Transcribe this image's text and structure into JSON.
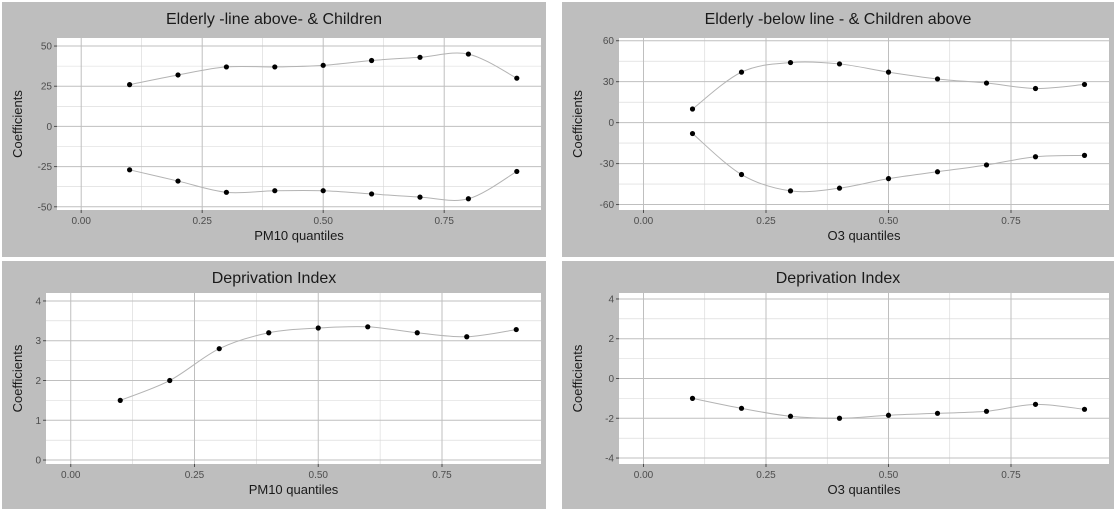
{
  "chart_data": [
    {
      "type": "line",
      "title": "Elderly -line above- & Children",
      "xlabel": "PM10 quantiles",
      "ylabel": "Coefficients",
      "xlim": [
        -0.05,
        0.95
      ],
      "ylim": [
        -52,
        55
      ],
      "xticks": [
        0.0,
        0.25,
        0.5,
        0.75
      ],
      "xtick_labels": [
        "0.00",
        "0.25",
        "0.50",
        "0.75"
      ],
      "yticks": [
        -50,
        -25,
        0,
        25,
        50
      ],
      "ytick_labels": [
        "-50",
        "-25",
        "0",
        "25",
        "50"
      ],
      "grid": true,
      "series": [
        {
          "x": [
            0.1,
            0.2,
            0.3,
            0.4,
            0.5,
            0.6,
            0.7,
            0.8,
            0.9
          ],
          "values": [
            26,
            32,
            37,
            37,
            38,
            41,
            43,
            45,
            30
          ]
        },
        {
          "x": [
            0.1,
            0.2,
            0.3,
            0.4,
            0.5,
            0.6,
            0.7,
            0.8,
            0.9
          ],
          "values": [
            -27,
            -34,
            -41,
            -40,
            -40,
            -42,
            -44,
            -45,
            -28
          ]
        }
      ]
    },
    {
      "type": "line",
      "title": "Elderly -below line - & Children above",
      "xlabel": "O3 quantiles",
      "ylabel": "Coefficients",
      "xlim": [
        -0.05,
        0.95
      ],
      "ylim": [
        -64,
        62
      ],
      "xticks": [
        0.0,
        0.25,
        0.5,
        0.75
      ],
      "xtick_labels": [
        "0.00",
        "0.25",
        "0.50",
        "0.75"
      ],
      "yticks": [
        -60,
        -30,
        0,
        30,
        60
      ],
      "ytick_labels": [
        "-60",
        "-30",
        "0",
        "30",
        "60"
      ],
      "grid": true,
      "series": [
        {
          "x": [
            0.1,
            0.2,
            0.3,
            0.4,
            0.5,
            0.6,
            0.7,
            0.8,
            0.9
          ],
          "values": [
            10,
            37,
            44,
            43,
            37,
            32,
            29,
            25,
            28
          ]
        },
        {
          "x": [
            0.1,
            0.2,
            0.3,
            0.4,
            0.5,
            0.6,
            0.7,
            0.8,
            0.9
          ],
          "values": [
            -8,
            -38,
            -50,
            -48,
            -41,
            -36,
            -31,
            -25,
            -24
          ]
        }
      ]
    },
    {
      "type": "line",
      "title": "Deprivation Index",
      "xlabel": "PM10 quantiles",
      "ylabel": "Coefficients",
      "xlim": [
        -0.05,
        0.95
      ],
      "ylim": [
        -0.1,
        4.2
      ],
      "xticks": [
        0.0,
        0.25,
        0.5,
        0.75
      ],
      "xtick_labels": [
        "0.00",
        "0.25",
        "0.50",
        "0.75"
      ],
      "yticks": [
        0,
        1,
        2,
        3,
        4
      ],
      "ytick_labels": [
        "0",
        "1",
        "2",
        "3",
        "4"
      ],
      "grid": true,
      "series": [
        {
          "x": [
            0.1,
            0.2,
            0.3,
            0.4,
            0.5,
            0.6,
            0.7,
            0.8,
            0.9
          ],
          "values": [
            1.5,
            2.0,
            2.8,
            3.2,
            3.32,
            3.35,
            3.2,
            3.1,
            3.28
          ]
        }
      ]
    },
    {
      "type": "line",
      "title": "Deprivation Index",
      "xlabel": "O3 quantiles",
      "ylabel": "Coefficients",
      "xlim": [
        -0.05,
        0.95
      ],
      "ylim": [
        -4.3,
        4.3
      ],
      "xticks": [
        0.0,
        0.25,
        0.5,
        0.75
      ],
      "xtick_labels": [
        "0.00",
        "0.25",
        "0.50",
        "0.75"
      ],
      "yticks": [
        -4,
        -2,
        0,
        2,
        4
      ],
      "ytick_labels": [
        "-4",
        "-2",
        "0",
        "2",
        "4"
      ],
      "grid": true,
      "series": [
        {
          "x": [
            0.1,
            0.2,
            0.3,
            0.4,
            0.5,
            0.6,
            0.7,
            0.8,
            0.9
          ],
          "values": [
            -1.0,
            -1.5,
            -1.9,
            -2.0,
            -1.85,
            -1.75,
            -1.65,
            -1.3,
            -1.55
          ]
        }
      ]
    }
  ],
  "colors": {
    "panel_bg": "#bebebe",
    "plot_bg": "#ffffff",
    "grid_major": "#bfbfbf",
    "grid_minor": "#d6d6d6",
    "line": "#b3b3b3",
    "point": "#000000",
    "text": "#1a1a1a",
    "tick_text": "#4d4d4d"
  }
}
